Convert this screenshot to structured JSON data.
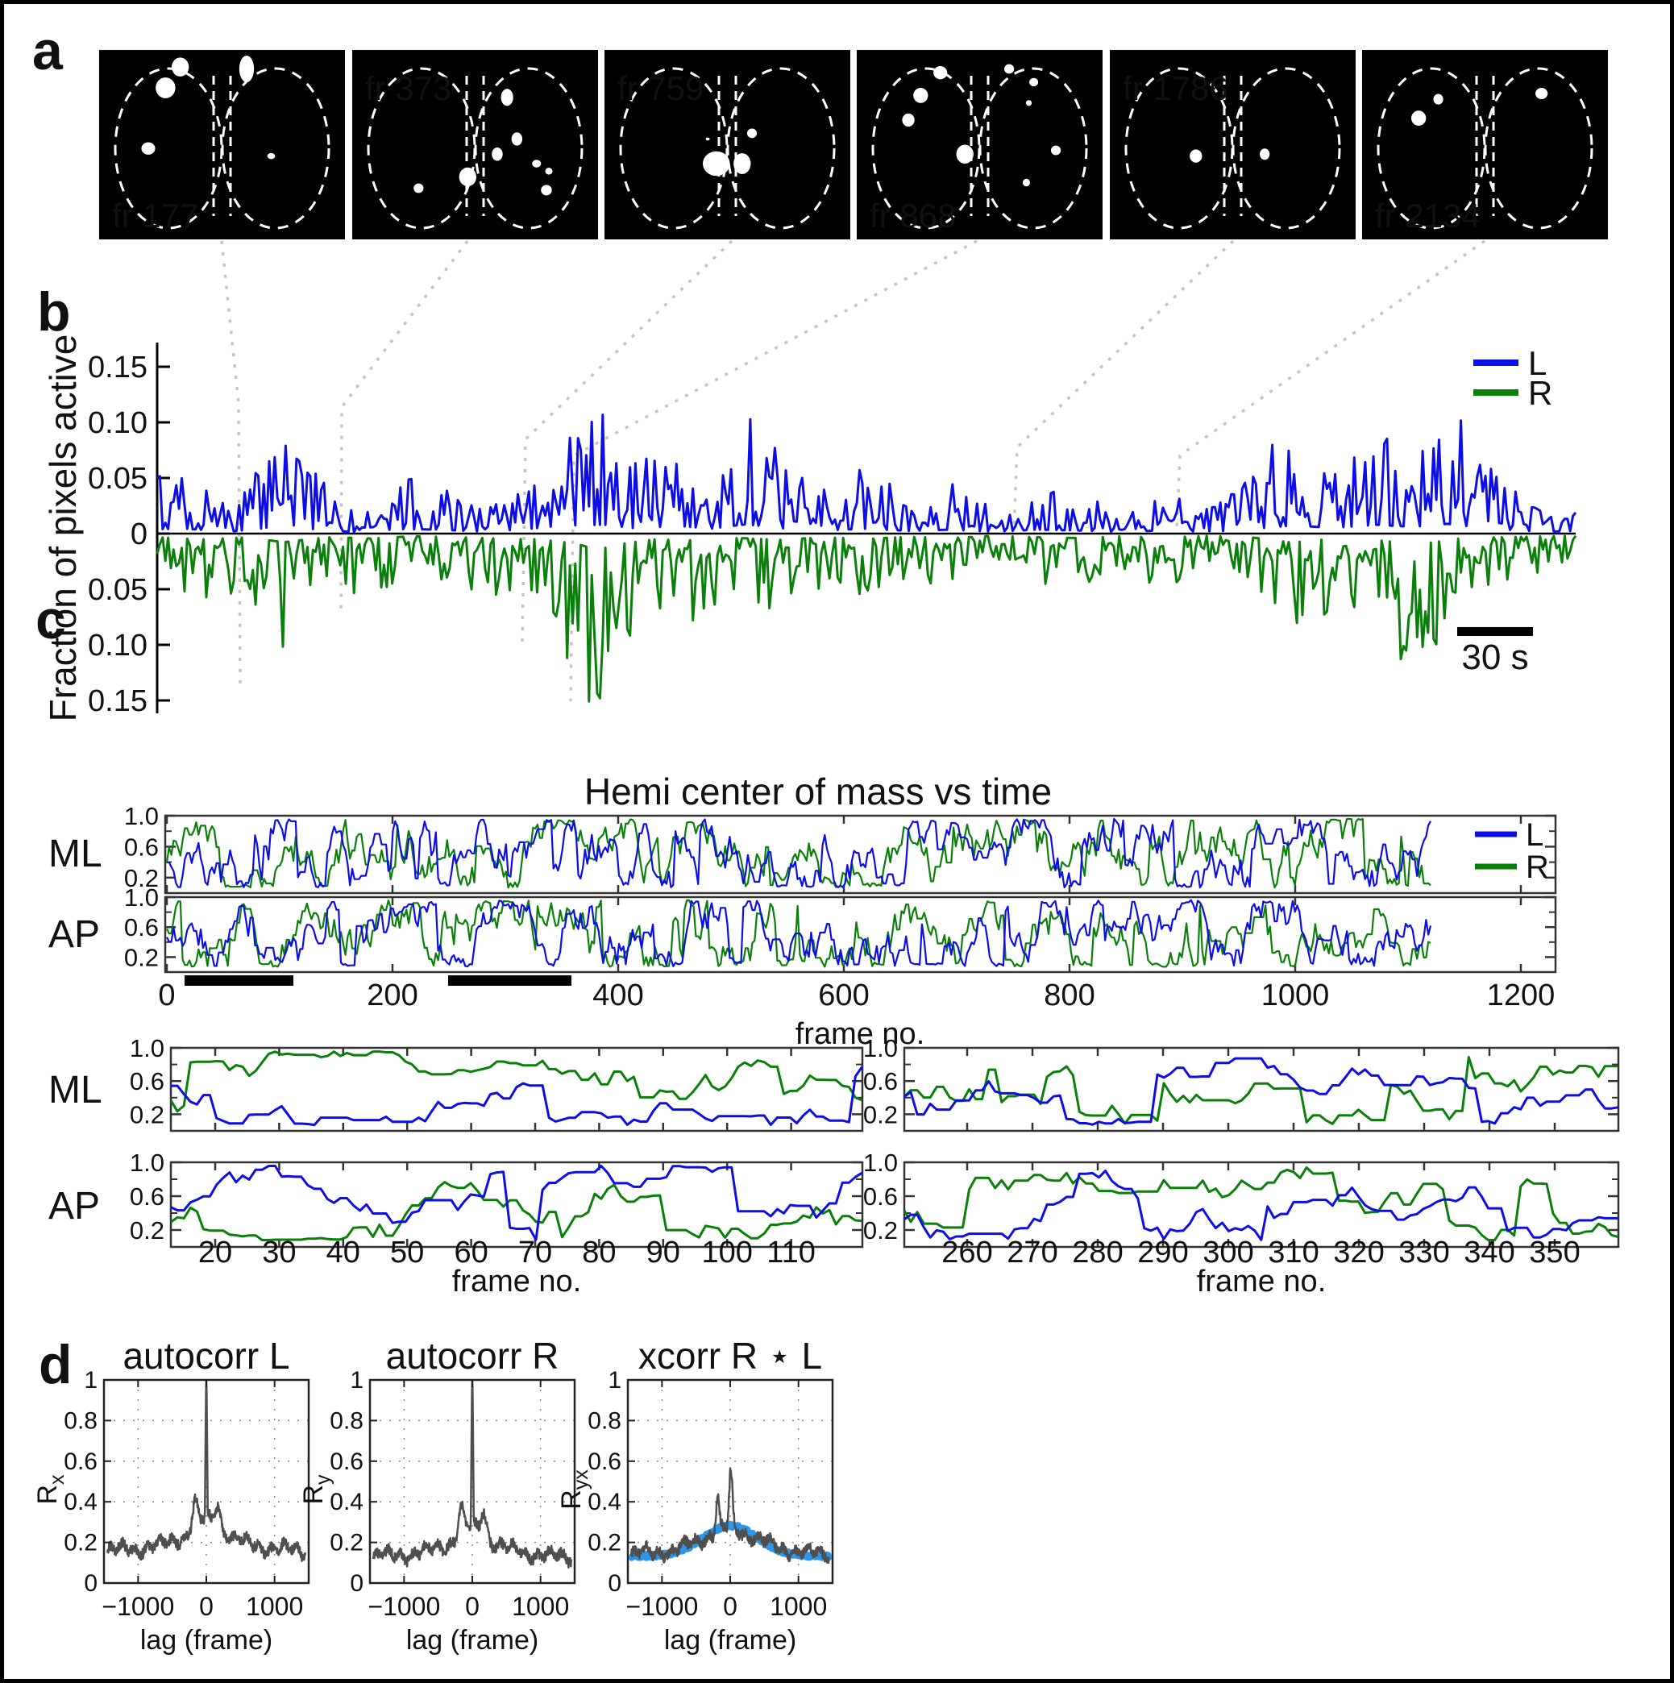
{
  "figure_type": "multi-panel scientific figure",
  "colors": {
    "left_trace": "#0d0de8",
    "right_trace": "#0a800a",
    "corr_trace": "#4f4f4f",
    "xcorr_band": "#2b96ec",
    "connector": "#c4c4c4",
    "frame_bg": "#000000",
    "blob": "#ffffff",
    "text": "#111111"
  },
  "panels": {
    "a": {
      "label": "a",
      "frames": [
        {
          "label": "fr 177",
          "label_pos": "bl",
          "blobs": [
            [
              0.33,
              0.09,
              0.035,
              0.05
            ],
            [
              0.27,
              0.2,
              0.04,
              0.055
            ],
            [
              0.6,
              0.1,
              0.03,
              0.07
            ],
            [
              0.2,
              0.52,
              0.028,
              0.033
            ],
            [
              0.7,
              0.56,
              0.016,
              0.016
            ]
          ]
        },
        {
          "label": "fr 373",
          "label_pos": "tl",
          "blobs": [
            [
              0.63,
              0.25,
              0.025,
              0.045
            ],
            [
              0.67,
              0.47,
              0.022,
              0.035
            ],
            [
              0.59,
              0.55,
              0.022,
              0.035
            ],
            [
              0.75,
              0.6,
              0.018,
              0.02
            ],
            [
              0.8,
              0.64,
              0.015,
              0.018
            ],
            [
              0.47,
              0.67,
              0.035,
              0.05
            ],
            [
              0.27,
              0.73,
              0.02,
              0.025
            ],
            [
              0.79,
              0.74,
              0.022,
              0.028
            ]
          ]
        },
        {
          "label": "fr 759",
          "label_pos": "tl",
          "blobs": [
            [
              0.455,
              0.6,
              0.055,
              0.065
            ],
            [
              0.56,
              0.6,
              0.035,
              0.055
            ],
            [
              0.42,
              0.47,
              0.008,
              0.008
            ],
            [
              0.6,
              0.44,
              0.02,
              0.025
            ]
          ]
        },
        {
          "label": "fr 868",
          "label_pos": "bl",
          "blobs": [
            [
              0.34,
              0.12,
              0.028,
              0.035
            ],
            [
              0.26,
              0.24,
              0.03,
              0.04
            ],
            [
              0.21,
              0.37,
              0.025,
              0.035
            ],
            [
              0.44,
              0.55,
              0.035,
              0.05
            ],
            [
              0.62,
              0.1,
              0.02,
              0.025
            ],
            [
              0.72,
              0.17,
              0.018,
              0.022
            ],
            [
              0.7,
              0.28,
              0.012,
              0.015
            ],
            [
              0.81,
              0.53,
              0.02,
              0.025
            ],
            [
              0.69,
              0.7,
              0.015,
              0.02
            ]
          ]
        },
        {
          "label": "fr 1786",
          "label_pos": "tl",
          "blobs": [
            [
              0.35,
              0.56,
              0.025,
              0.035
            ],
            [
              0.63,
              0.55,
              0.02,
              0.03
            ]
          ]
        },
        {
          "label": "fr 2134",
          "label_pos": "bl",
          "blobs": [
            [
              0.31,
              0.26,
              0.02,
              0.028
            ],
            [
              0.23,
              0.36,
              0.03,
              0.04
            ],
            [
              0.73,
              0.23,
              0.025,
              0.03
            ]
          ]
        }
      ]
    },
    "b": {
      "label": "b",
      "ylabel": "Fraction of pixels active",
      "yticks": [
        "0.15",
        "0.10",
        "0.05",
        "0",
        "0.05",
        "0.10",
        "0.15"
      ],
      "legend": [
        {
          "label": "L"
        },
        {
          "label": "R"
        }
      ],
      "scalebar_label": "30 s"
    },
    "c": {
      "label": "c",
      "title": "Hemi center of mass vs time",
      "xlabel": "frame no.",
      "row_labels": [
        "ML",
        "AP"
      ],
      "legend": [
        {
          "label": "L"
        },
        {
          "label": "R"
        }
      ],
      "main": {
        "xticks": [
          "0",
          "200",
          "400",
          "600",
          "800",
          "1000",
          "1200"
        ],
        "yticks": [
          "1.0",
          "0.6",
          "0.2"
        ]
      },
      "zoom_left": {
        "xticks": [
          "20",
          "30",
          "40",
          "50",
          "60",
          "70",
          "80",
          "90",
          "100",
          "110"
        ],
        "yticks": [
          "1.0",
          "0.6",
          "0.2"
        ]
      },
      "zoom_right": {
        "xticks": [
          "260",
          "270",
          "280",
          "290",
          "300",
          "310",
          "320",
          "330",
          "340",
          "350"
        ],
        "yticks": [
          "1.0",
          "0.6",
          "0.2"
        ]
      }
    },
    "d": {
      "label": "d",
      "xlabel": "lag (frame)",
      "xticks": [
        "−1000",
        "0",
        "1000"
      ],
      "yticks": [
        "1",
        "0.8",
        "0.6",
        "0.4",
        "0.2",
        "0"
      ],
      "plots": [
        {
          "title": "autocorr L",
          "ylabel": {
            "main": "R",
            "sub": "x"
          }
        },
        {
          "title": "autocorr R",
          "ylabel": {
            "main": "R",
            "sub": "y"
          }
        },
        {
          "title": "xcorr R ⋆ L",
          "ylabel": {
            "main": "R",
            "sub": "yx"
          }
        }
      ]
    }
  },
  "traces": {
    "b": {
      "n": 520,
      "L": {
        "seed": 7,
        "env": [
          [
            0,
            0.05
          ],
          [
            0.02,
            0.055
          ],
          [
            0.05,
            0.02
          ],
          [
            0.075,
            0.06
          ],
          [
            0.09,
            0.112
          ],
          [
            0.11,
            0.05
          ],
          [
            0.14,
            0.015
          ],
          [
            0.17,
            0.05
          ],
          [
            0.2,
            0.045
          ],
          [
            0.23,
            0.02
          ],
          [
            0.26,
            0.05
          ],
          [
            0.285,
            0.09
          ],
          [
            0.315,
            0.1
          ],
          [
            0.34,
            0.055
          ],
          [
            0.365,
            0.09
          ],
          [
            0.39,
            0.055
          ],
          [
            0.415,
            0.105
          ],
          [
            0.44,
            0.06
          ],
          [
            0.47,
            0.035
          ],
          [
            0.5,
            0.055
          ],
          [
            0.53,
            0.03
          ],
          [
            0.56,
            0.045
          ],
          [
            0.59,
            0.02
          ],
          [
            0.62,
            0.045
          ],
          [
            0.65,
            0.035
          ],
          [
            0.68,
            0.015
          ],
          [
            0.71,
            0.04
          ],
          [
            0.735,
            0.02
          ],
          [
            0.76,
            0.035
          ],
          [
            0.8,
            0.09
          ],
          [
            0.83,
            0.065
          ],
          [
            0.86,
            0.1
          ],
          [
            0.885,
            0.075
          ],
          [
            0.91,
            0.11
          ],
          [
            0.935,
            0.06
          ],
          [
            0.96,
            0.035
          ],
          [
            0.98,
            0.02
          ],
          [
            1,
            0.03
          ]
        ]
      },
      "R": {
        "seed": 13,
        "env": [
          [
            0,
            0.04
          ],
          [
            0.03,
            0.065
          ],
          [
            0.06,
            0.045
          ],
          [
            0.09,
            0.095
          ],
          [
            0.12,
            0.04
          ],
          [
            0.15,
            0.055
          ],
          [
            0.18,
            0.03
          ],
          [
            0.21,
            0.04
          ],
          [
            0.24,
            0.055
          ],
          [
            0.27,
            0.065
          ],
          [
            0.295,
            0.11
          ],
          [
            0.31,
            0.185
          ],
          [
            0.325,
            0.12
          ],
          [
            0.35,
            0.065
          ],
          [
            0.38,
            0.075
          ],
          [
            0.41,
            0.05
          ],
          [
            0.44,
            0.07
          ],
          [
            0.47,
            0.04
          ],
          [
            0.5,
            0.06
          ],
          [
            0.53,
            0.035
          ],
          [
            0.56,
            0.05
          ],
          [
            0.59,
            0.025
          ],
          [
            0.62,
            0.04
          ],
          [
            0.65,
            0.05
          ],
          [
            0.68,
            0.03
          ],
          [
            0.71,
            0.045
          ],
          [
            0.74,
            0.025
          ],
          [
            0.77,
            0.04
          ],
          [
            0.8,
            0.1
          ],
          [
            0.83,
            0.055
          ],
          [
            0.86,
            0.075
          ],
          [
            0.89,
            0.12
          ],
          [
            0.92,
            0.05
          ],
          [
            0.95,
            0.04
          ],
          [
            0.98,
            0.03
          ],
          [
            1,
            0.025
          ]
        ]
      }
    },
    "c_main": {
      "n": 560,
      "end_frame": 1120,
      "hold": 0.18,
      "jump": 0.1,
      "step": 0.5,
      "ml": {
        "L": 21,
        "R": 33
      },
      "ap": {
        "L": 45,
        "R": 57
      }
    },
    "c_zoom": {
      "hold": 0.33,
      "jump": 0.08,
      "step": 0.28,
      "left": {
        "n": 107,
        "ml": {
          "L": 101,
          "R": 103
        },
        "ap": {
          "L": 105,
          "R": 107
        }
      },
      "right": {
        "n": 111,
        "ml": {
          "L": 109,
          "R": 111
        },
        "ap": {
          "L": 113,
          "R": 115
        }
      }
    },
    "d": {
      "n": 581,
      "auto_L": {
        "seed": 201,
        "base": 0.155,
        "amp": 0.17
      },
      "auto_R": {
        "seed": 203,
        "base": 0.125,
        "amp": 0.16
      },
      "xcorr_gray": {
        "seed": 205
      },
      "xcorr_band": {
        "seed": 207
      }
    }
  }
}
